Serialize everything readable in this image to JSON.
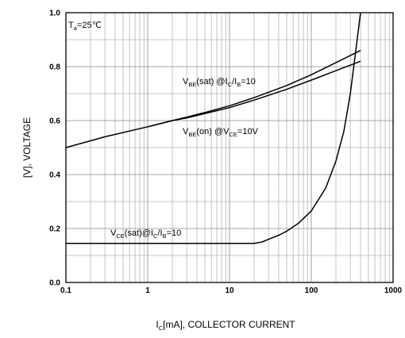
{
  "chart_data": {
    "type": "line",
    "x_scale": "log",
    "xlim": [
      0.1,
      1000
    ],
    "ylim": [
      0.0,
      1.0
    ],
    "grid": true,
    "xlabel": {
      "main": "I",
      "sub": "C",
      "rest": "[mA], COLLECTOR CURRENT"
    },
    "ylabel": "[V], VOLTAGE",
    "x_ticks": [
      {
        "value": 0.1,
        "label": "0.1"
      },
      {
        "value": 1,
        "label": "1"
      },
      {
        "value": 10,
        "label": "10"
      },
      {
        "value": 100,
        "label": "100"
      },
      {
        "value": 1000,
        "label": "1000"
      }
    ],
    "y_ticks": [
      {
        "value": 0.0,
        "label": "0.0"
      },
      {
        "value": 0.2,
        "label": "0.2"
      },
      {
        "value": 0.4,
        "label": "0.4"
      },
      {
        "value": 0.6,
        "label": "0.6"
      },
      {
        "value": 0.8,
        "label": "0.8"
      },
      {
        "value": 1.0,
        "label": "1.0"
      }
    ],
    "condition": {
      "main": "T",
      "sub": "a",
      "rest": "=25℃"
    },
    "series": [
      {
        "name": "VBE(sat) @IC/IB=10",
        "x": [
          0.1,
          0.3,
          1,
          2,
          3,
          5,
          10,
          20,
          50,
          100,
          200,
          400
        ],
        "y": [
          0.5,
          0.54,
          0.577,
          0.6,
          0.613,
          0.63,
          0.655,
          0.685,
          0.73,
          0.77,
          0.815,
          0.86
        ]
      },
      {
        "name": "VBE(on) @VCE=10V",
        "x": [
          1,
          2,
          3,
          5,
          10,
          20,
          50,
          100,
          200,
          400
        ],
        "y": [
          0.577,
          0.6,
          0.61,
          0.626,
          0.648,
          0.676,
          0.716,
          0.75,
          0.785,
          0.82
        ]
      },
      {
        "name": "VCE(sat)@IC/IB=10",
        "x": [
          0.1,
          1,
          10,
          20,
          25,
          30,
          40,
          50,
          70,
          100,
          150,
          200,
          250,
          300,
          350,
          400
        ],
        "y": [
          0.145,
          0.145,
          0.145,
          0.145,
          0.15,
          0.16,
          0.175,
          0.19,
          0.22,
          0.265,
          0.35,
          0.45,
          0.56,
          0.7,
          0.86,
          1.0
        ]
      }
    ],
    "annotations": [
      {
        "parts": [
          {
            "t": "V"
          },
          {
            "t": "BE",
            "sub": true
          },
          {
            "t": "(sat) @I"
          },
          {
            "t": "C",
            "sub": true
          },
          {
            "t": "/I"
          },
          {
            "t": "B",
            "sub": true
          },
          {
            "t": "=10"
          }
        ]
      },
      {
        "parts": [
          {
            "t": "V"
          },
          {
            "t": "BE",
            "sub": true
          },
          {
            "t": "(on) @V"
          },
          {
            "t": "CE",
            "sub": true
          },
          {
            "t": "=10V"
          }
        ]
      },
      {
        "parts": [
          {
            "t": "V"
          },
          {
            "t": "CE",
            "sub": true
          },
          {
            "t": "(sat)@I"
          },
          {
            "t": "C",
            "sub": true
          },
          {
            "t": "/I"
          },
          {
            "t": "B",
            "sub": true
          },
          {
            "t": "=10"
          }
        ]
      }
    ]
  }
}
